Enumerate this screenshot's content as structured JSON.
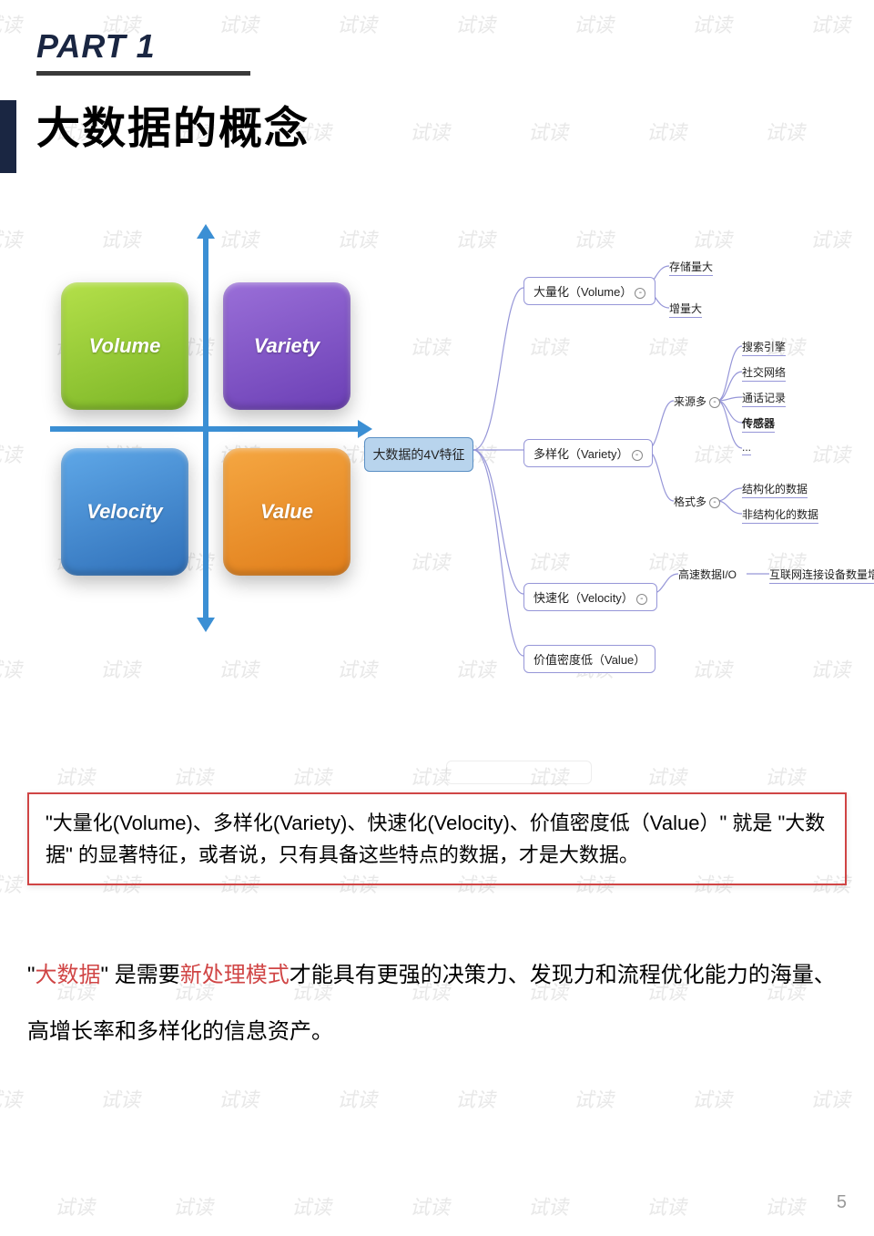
{
  "header": {
    "part_label": "PART 1",
    "title": "大数据的概念",
    "accent_color": "#1a2642",
    "underline_color": "#3a3a3a"
  },
  "quadrant": {
    "axis_color": "#3b8fd4",
    "boxes": {
      "top_left": {
        "label": "Volume",
        "gradient_from": "#b4e04a",
        "gradient_to": "#7bb526"
      },
      "top_right": {
        "label": "Variety",
        "gradient_from": "#9a6fd8",
        "gradient_to": "#6b3fb5"
      },
      "bottom_left": {
        "label": "Velocity",
        "gradient_from": "#5fa8e8",
        "gradient_to": "#2f6fb8"
      },
      "bottom_right": {
        "label": "Value",
        "gradient_from": "#f5a742",
        "gradient_to": "#e07d1a"
      }
    }
  },
  "mindmap": {
    "root": "大数据的4V特征",
    "root_bg": "#b8d4ed",
    "node_border": "#9696d8",
    "branches": [
      {
        "label": "大量化（Volume）",
        "leaves": [
          "存储量大",
          "增量大"
        ]
      },
      {
        "label": "多样化（Variety）",
        "subs": [
          {
            "label": "来源多",
            "leaves": [
              "搜索引擎",
              "社交网络",
              "通话记录",
              "传感器",
              "..."
            ]
          },
          {
            "label": "格式多",
            "leaves": [
              "结构化的数据",
              "非结构化的数据"
            ]
          }
        ]
      },
      {
        "label": "快速化（Velocity）",
        "subs": [
          {
            "label": "高速数据I/O",
            "leaves": [
              "互联网连接设备数量增长"
            ]
          }
        ]
      },
      {
        "label": "价值密度低（Value）"
      }
    ]
  },
  "redbox": {
    "text_prefix": "\"大量化(Volume)、多样化(Variety)、快速化(Velocity)、价值密度低（Value）\" 就是 \"大数据\" 的显著特征，或者说，只有具备这些特点的数据，才是大数据。",
    "border_color": "#d04545"
  },
  "bottom": {
    "pre": "\"",
    "red1": "大数据",
    "mid1": "\" 是需要",
    "red2": "新处理模式",
    "post": "才能具有更强的决策力、发现力和流程优化能力的海量、高增长率和多样化的信息资产。"
  },
  "page_number": "5",
  "watermark_text": "试读",
  "watermark_color": "#e8e8e8"
}
